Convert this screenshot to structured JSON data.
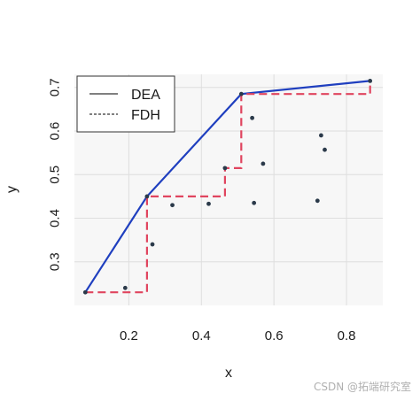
{
  "chart_data": {
    "type": "scatter",
    "xlabel": "x",
    "ylabel": "y",
    "xlim": [
      0.05,
      0.9
    ],
    "ylim": [
      0.2,
      0.73
    ],
    "x_ticks": [
      0.2,
      0.4,
      0.6,
      0.8
    ],
    "x_tick_labels": [
      "0.2",
      "0.4",
      "0.6",
      "0.8"
    ],
    "y_ticks": [
      0.3,
      0.4,
      0.5,
      0.6,
      0.7
    ],
    "y_tick_labels": [
      "0.3",
      "0.4",
      "0.5",
      "0.6",
      "0.7"
    ],
    "grid": true,
    "legend_position": "top-left",
    "points": {
      "x": [
        0.08,
        0.19,
        0.25,
        0.265,
        0.32,
        0.42,
        0.465,
        0.51,
        0.54,
        0.545,
        0.57,
        0.72,
        0.73,
        0.74,
        0.865
      ],
      "y": [
        0.23,
        0.24,
        0.45,
        0.34,
        0.43,
        0.433,
        0.515,
        0.685,
        0.63,
        0.435,
        0.525,
        0.44,
        0.59,
        0.557,
        0.715
      ]
    },
    "series": [
      {
        "name": "DEA",
        "style": "solid",
        "color": "#1f3fbf",
        "x": [
          0.08,
          0.25,
          0.51,
          0.865
        ],
        "y": [
          0.23,
          0.45,
          0.685,
          0.715
        ]
      },
      {
        "name": "FDH",
        "style": "dashed",
        "color": "#e0455f",
        "x": [
          0.08,
          0.25,
          0.25,
          0.465,
          0.465,
          0.51,
          0.51,
          0.865,
          0.865
        ],
        "y": [
          0.23,
          0.23,
          0.45,
          0.45,
          0.515,
          0.515,
          0.685,
          0.685,
          0.715
        ]
      }
    ],
    "point_color": "#2b3a4a",
    "panel_color": "#f7f7f7",
    "grid_color": "#dedede"
  },
  "watermark": "CSDN @拓端研究室"
}
